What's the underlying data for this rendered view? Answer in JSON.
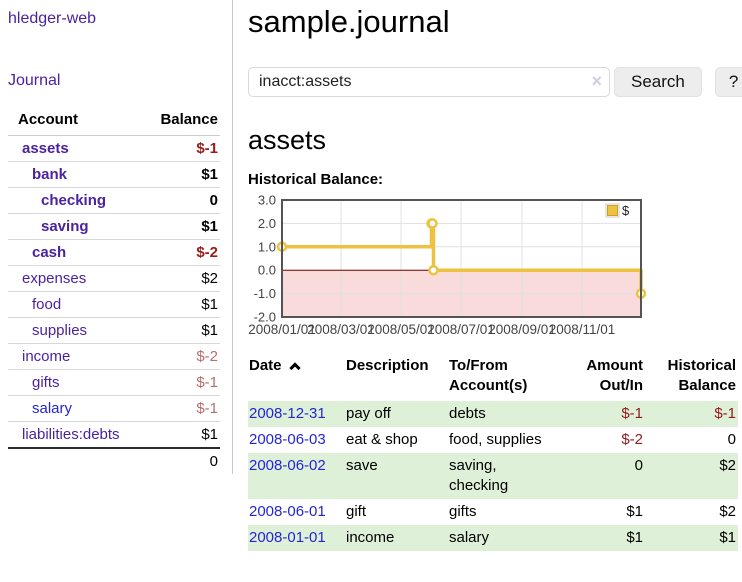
{
  "app": {
    "title": "hledger-web",
    "nav_journal": "Journal"
  },
  "sidebar": {
    "table": {
      "col_account": "Account",
      "col_balance": "Balance"
    },
    "accounts": [
      {
        "label": "assets",
        "level": 1,
        "bold": true,
        "link_color": "purple",
        "balance": "$-1",
        "balance_style": "neg-strong"
      },
      {
        "label": "bank",
        "level": 2,
        "bold": true,
        "link_color": "purple",
        "balance": "$1",
        "balance_style": "pos"
      },
      {
        "label": "checking",
        "level": 3,
        "bold": true,
        "link_color": "purple",
        "balance": "0",
        "balance_style": "pos"
      },
      {
        "label": "saving",
        "level": 3,
        "bold": true,
        "link_color": "purple",
        "balance": "$1",
        "balance_style": "pos"
      },
      {
        "label": "cash",
        "level": 2,
        "bold": true,
        "link_color": "purple",
        "balance": "$-2",
        "balance_style": "neg-strong"
      },
      {
        "label": "expenses",
        "level": 1,
        "bold": false,
        "link_color": "purple",
        "balance": "$2",
        "balance_style": "pos"
      },
      {
        "label": "food",
        "level": 2,
        "bold": false,
        "link_color": "purple",
        "balance": "$1",
        "balance_style": "pos"
      },
      {
        "label": "supplies",
        "level": 2,
        "bold": false,
        "link_color": "purple",
        "balance": "$1",
        "balance_style": "pos"
      },
      {
        "label": "income",
        "level": 1,
        "bold": false,
        "link_color": "purple",
        "balance": "$-2",
        "balance_style": "neg-soft"
      },
      {
        "label": "gifts",
        "level": 2,
        "bold": false,
        "link_color": "purple",
        "balance": "$-1",
        "balance_style": "neg-soft"
      },
      {
        "label": "salary",
        "level": 2,
        "bold": false,
        "link_color": "blue",
        "balance": "$-1",
        "balance_style": "neg-soft"
      },
      {
        "label": "liabilities:debts",
        "level": 1,
        "bold": false,
        "link_color": "purple",
        "balance": "$1",
        "balance_style": "pos"
      }
    ],
    "total": "0"
  },
  "header": {
    "title": "sample.journal"
  },
  "search": {
    "value": "inacct:assets",
    "placeholder": "",
    "clear_icon": "×",
    "button_label": "Search",
    "help_label": "?"
  },
  "account_page": {
    "heading": "assets",
    "chart_label": "Historical Balance:"
  },
  "chart_data": {
    "type": "line",
    "title": "Historical Balance:",
    "step": true,
    "series": [
      {
        "name": "$",
        "points": [
          [
            "2008-01-01",
            1
          ],
          [
            "2008-06-01",
            2
          ],
          [
            "2008-06-02",
            2
          ],
          [
            "2008-06-03",
            0
          ],
          [
            "2008-12-31",
            -1
          ]
        ]
      }
    ],
    "xlim": [
      "2008-01-01",
      "2008-12-31"
    ],
    "ylim": [
      -2,
      3
    ],
    "yticks": [
      3,
      2,
      1,
      0,
      -1,
      -2
    ],
    "xticks": [
      {
        "value": "2008-01-01",
        "label": "2008/01/01"
      },
      {
        "value": "2008-03-01",
        "label": "2008/03/01"
      },
      {
        "value": "2008-05-01",
        "label": "2008/05/01"
      },
      {
        "value": "2008-07-01",
        "label": "2008/07/01"
      },
      {
        "value": "2008-09-01",
        "label": "2008/09/01"
      },
      {
        "value": "2008-11-01",
        "label": "2008/11/01"
      }
    ],
    "grid": true,
    "legend_position": "top-right",
    "colors": {
      "line": "#edc240",
      "swatch_border": "#c9a227",
      "below_zero_fill": "#fadbdb",
      "zero_line": "#7a0000",
      "grid": "#e0e0e0",
      "border": "#545454",
      "tick_text": "#444444",
      "legend_border": "#cccccc"
    }
  },
  "register": {
    "columns": [
      {
        "label": "Date",
        "sortable": true,
        "sort": "asc"
      },
      {
        "label": "Description"
      },
      {
        "label": "To/From Account(s)"
      },
      {
        "label": "Amount Out/In",
        "align": "right"
      },
      {
        "label": "Historical Balance",
        "align": "right"
      }
    ],
    "rows": [
      {
        "date": "2008-12-31",
        "description": "pay off",
        "accounts": "debts",
        "amount": "$-1",
        "amount_neg": true,
        "balance": "$-1",
        "balance_neg": true,
        "shaded": true
      },
      {
        "date": "2008-06-03",
        "description": "eat & shop",
        "accounts": "food, supplies",
        "amount": "$-2",
        "amount_neg": true,
        "balance": "0",
        "balance_neg": false,
        "shaded": false
      },
      {
        "date": "2008-06-02",
        "description": "save",
        "accounts": "saving,\nchecking",
        "amount": "0",
        "amount_neg": false,
        "balance": "$2",
        "balance_neg": false,
        "shaded": true
      },
      {
        "date": "2008-06-01",
        "description": "gift",
        "accounts": "gifts",
        "amount": "$1",
        "amount_neg": false,
        "balance": "$2",
        "balance_neg": false,
        "shaded": false
      },
      {
        "date": "2008-01-01",
        "description": "income",
        "accounts": "salary",
        "amount": "$1",
        "amount_neg": false,
        "balance": "$1",
        "balance_neg": false,
        "shaded": true
      }
    ]
  },
  "colors": {
    "link_purple": "#4b23a0",
    "link_blue": "#2525d6",
    "negative_strong": "#9c1b1b",
    "negative_soft": "#b56e6e",
    "table_stripe_green": "#dff0d8",
    "chart_gold": "#edc240"
  }
}
